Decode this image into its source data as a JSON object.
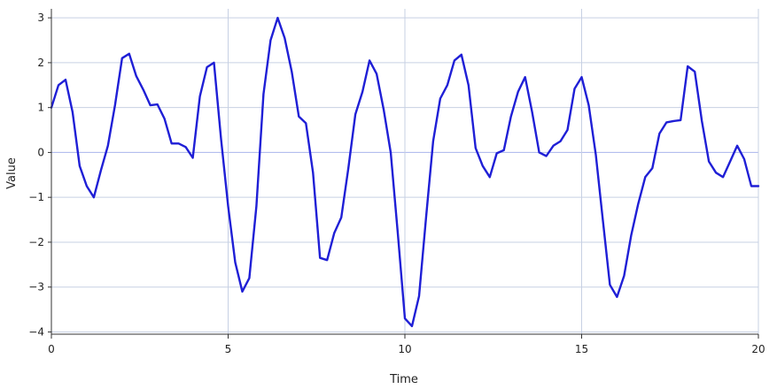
{
  "chart_data": {
    "type": "line",
    "title": "",
    "xlabel": "Time",
    "ylabel": "Value",
    "xlim": [
      0,
      20
    ],
    "ylim": [
      -4.05,
      3.2
    ],
    "x_ticks": [
      0,
      5,
      10,
      15,
      20
    ],
    "x_tick_labels": [
      "0",
      "5",
      "10",
      "15",
      "20"
    ],
    "y_ticks": [
      -4,
      -3,
      -2,
      -1,
      0,
      1,
      2,
      3
    ],
    "y_tick_labels": [
      "−4",
      "−3",
      "−2",
      "−1",
      "0",
      "1",
      "2",
      "3"
    ],
    "grid": true,
    "legend": "none",
    "colors": {
      "line": "#1f1fd6",
      "grid": "#c7d0e3",
      "zero_line": "#a9b4ec",
      "axis": "#333333"
    },
    "series": [
      {
        "x": [
          0,
          0.2,
          0.4,
          0.6,
          0.8,
          1.0,
          1.2,
          1.4,
          1.6,
          1.8,
          2.0,
          2.2,
          2.4,
          2.6,
          2.8,
          3.0,
          3.2,
          3.4,
          3.6,
          3.8,
          4.0,
          4.2,
          4.4,
          4.6,
          4.8,
          5.0,
          5.2,
          5.4,
          5.6,
          5.8,
          6.0,
          6.2,
          6.4,
          6.6,
          6.8,
          7.0,
          7.2,
          7.4,
          7.6,
          7.8,
          8.0,
          8.2,
          8.4,
          8.6,
          8.8,
          9.0,
          9.2,
          9.4,
          9.6,
          9.8,
          10.0,
          10.2,
          10.4,
          10.6,
          10.8,
          11.0,
          11.2,
          11.4,
          11.6,
          11.8,
          12.0,
          12.2,
          12.4,
          12.6,
          12.8,
          13.0,
          13.2,
          13.4,
          13.6,
          13.8,
          14.0,
          14.2,
          14.4,
          14.6,
          14.8,
          15.0,
          15.2,
          15.4,
          15.6,
          15.8,
          16.0,
          16.2,
          16.4,
          16.6,
          16.8,
          17.0,
          17.2,
          17.4,
          17.6,
          17.8,
          18.0,
          18.2,
          18.4,
          18.6,
          18.8,
          19.0,
          19.2,
          19.4,
          19.6,
          19.8,
          20.0
        ],
        "y": [
          1.0,
          1.5,
          1.62,
          0.9,
          -0.3,
          -0.75,
          -1.0,
          -0.4,
          0.15,
          1.05,
          2.1,
          2.2,
          1.7,
          1.4,
          1.05,
          1.07,
          0.75,
          0.2,
          0.2,
          0.12,
          -0.12,
          1.25,
          1.9,
          2.0,
          0.3,
          -1.2,
          -2.45,
          -3.1,
          -2.8,
          -1.2,
          1.3,
          2.5,
          3.0,
          2.55,
          1.8,
          0.8,
          0.65,
          -0.45,
          -2.35,
          -2.4,
          -1.8,
          -1.45,
          -0.35,
          0.85,
          1.35,
          2.05,
          1.75,
          0.95,
          0.0,
          -1.8,
          -3.7,
          -3.87,
          -3.2,
          -1.45,
          0.25,
          1.2,
          1.5,
          2.05,
          2.18,
          1.5,
          0.1,
          -0.3,
          -0.55,
          -0.02,
          0.05,
          0.8,
          1.35,
          1.68,
          0.9,
          0.0,
          -0.08,
          0.15,
          0.25,
          0.5,
          1.42,
          1.68,
          1.05,
          -0.05,
          -1.5,
          -2.95,
          -3.22,
          -2.75,
          -1.85,
          -1.15,
          -0.55,
          -0.35,
          0.42,
          0.67,
          0.7,
          0.72,
          1.92,
          1.8,
          0.7,
          -0.2,
          -0.45,
          -0.55,
          -0.2,
          0.15,
          -0.15,
          -0.75,
          -0.75
        ]
      }
    ]
  }
}
